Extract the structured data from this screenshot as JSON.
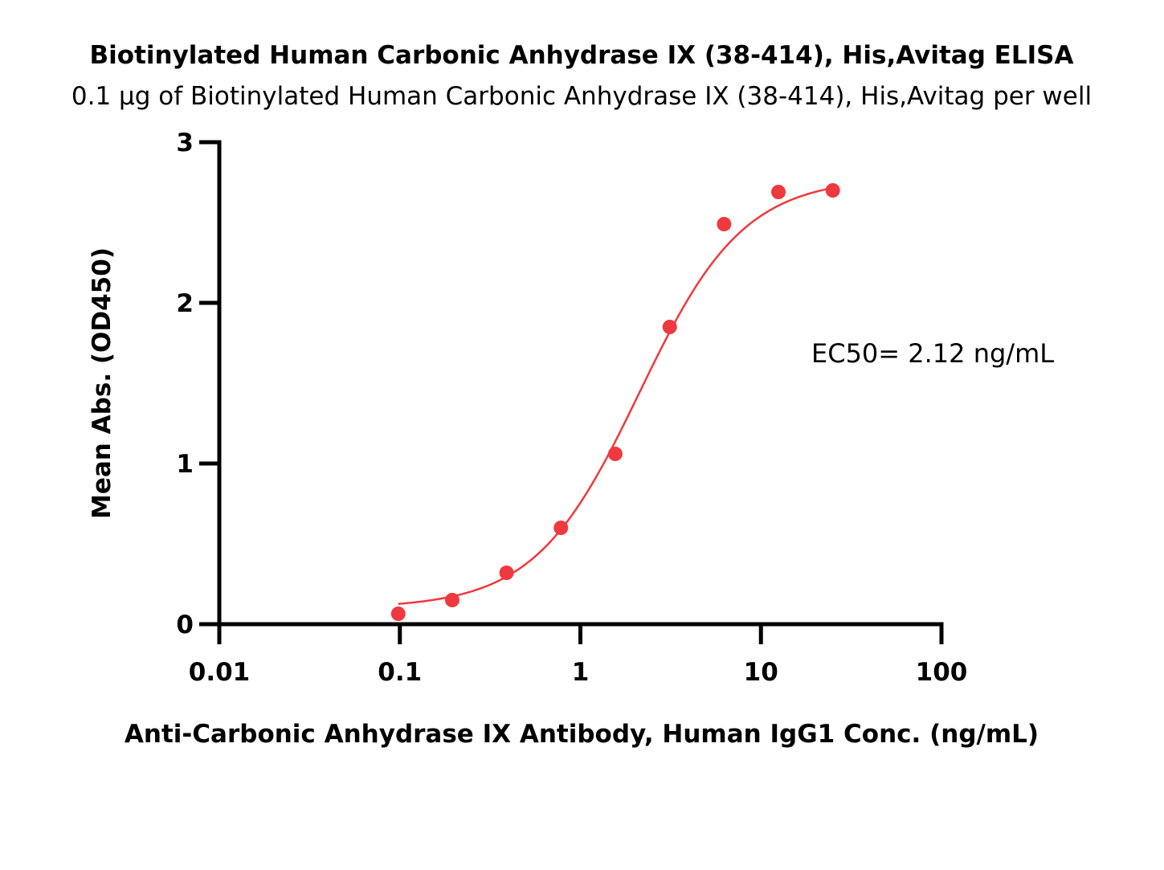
{
  "chart_data": {
    "type": "scatter",
    "title": "Biotinylated Human Carbonic Anhydrase IX (38-414), His,Avitag ELISA",
    "subtitle": "0.1 μg of Biotinylated Human Carbonic Anhydrase IX (38-414), His,Avitag per well",
    "xlabel": "Anti-Carbonic Anhydrase IX Antibody, Human IgG1 Conc. (ng/mL)",
    "ylabel": "Mean Abs. (OD450)",
    "x_scale": "log",
    "xlim": [
      0.01,
      100
    ],
    "ylim": [
      0,
      3
    ],
    "x_ticks": [
      {
        "value": 0.01,
        "label": "0.01"
      },
      {
        "value": 0.1,
        "label": "0.1"
      },
      {
        "value": 1,
        "label": "1"
      },
      {
        "value": 10,
        "label": "10"
      },
      {
        "value": 100,
        "label": "100"
      }
    ],
    "y_ticks": [
      {
        "value": 0,
        "label": "0"
      },
      {
        "value": 1,
        "label": "1"
      },
      {
        "value": 2,
        "label": "2"
      },
      {
        "value": 3,
        "label": "3"
      }
    ],
    "series": [
      {
        "color": "#f0393e",
        "x": [
          0.098,
          0.195,
          0.39,
          0.78,
          1.56,
          3.125,
          6.25,
          12.5,
          25
        ],
        "y": [
          0.065,
          0.15,
          0.32,
          0.6,
          1.06,
          1.85,
          2.49,
          2.69,
          2.7
        ],
        "fit": {
          "model": "4PL",
          "bottom": 0.1,
          "top": 2.78,
          "ec50": 2.12,
          "hill": 1.5,
          "x_range": [
            0.098,
            25
          ]
        }
      }
    ],
    "annotation": "EC50= 2.12 ng/mL",
    "grid": false,
    "legend": "none"
  }
}
